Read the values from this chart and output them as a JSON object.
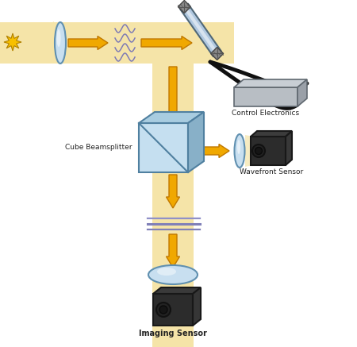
{
  "bg_color": "#ffffff",
  "beam_color": "#f5e4a8",
  "lens_color": "#c8dff0",
  "lens_edge": "#6090b0",
  "arrow_fc": "#f0a800",
  "arrow_ec": "#c07800",
  "mirror_color": "#b0c8e0",
  "mirror_edge": "#506878",
  "cube_face_color": "#c5dff0",
  "cube_top_color": "#a8cce0",
  "cube_right_color": "#88b0c8",
  "cube_edge": "#5080a0",
  "camera_body": "#2a2a2a",
  "camera_dark": "#1a1a1a",
  "camera_lens_ring": "#404040",
  "control_face": "#b8bec4",
  "control_top": "#c8ced4",
  "control_right": "#9aa0a8",
  "control_edge": "#606870",
  "wavy_color": "#6868b8",
  "star_color": "#f8c000",
  "star_edge": "#b08000",
  "cable_color": "#101010",
  "label_fontsize": 6.5,
  "label_color": "#222222",
  "labels": {
    "cube_beamsplitter": "Cube Beamsplitter",
    "wavefront_sensor": "Wavefront Sensor",
    "control_electronics": "Control Electronics",
    "imaging_sensor": "Imaging Sensor"
  }
}
